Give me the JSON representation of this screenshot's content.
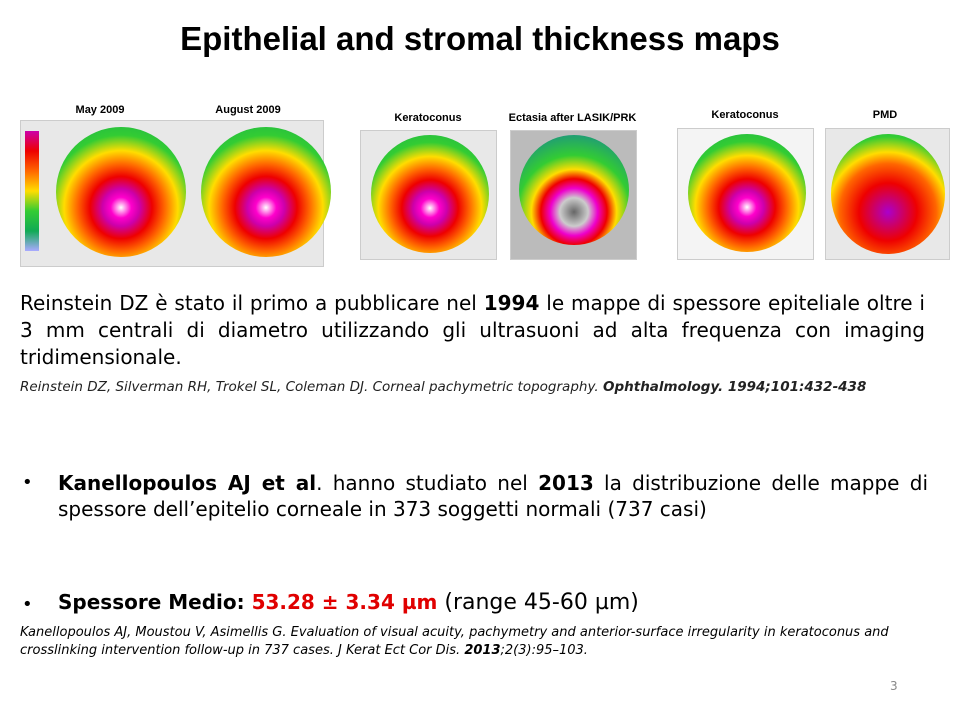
{
  "title": "Epithelial and stromal thickness maps",
  "figure_labels": [
    "May 2009",
    "August 2009",
    "Keratoconus",
    "Ectasia after LASIK/PRK",
    "Keratoconus",
    "PMD"
  ],
  "paragraph": {
    "a": "Reinstein DZ è stato il primo a pubblicare nel ",
    "b": "1994",
    "c": " le mappe di spessore epiteliale oltre i 3 mm centrali di diametro utilizzando gli ultrasuoni ad alta frequenza con imaging tridimensionale."
  },
  "citation1": {
    "a": "Reinstein DZ, Silverman RH, Trokel SL, Coleman DJ. Corneal pachymetric topography. ",
    "b": "Ophthalmology. 1994;101:432-438"
  },
  "bullet1": {
    "a": "Kanellopoulos AJ et al",
    "b": ". hanno studiato nel ",
    "c": "2013",
    "d": " la distribuzione delle mappe di spessore dell’epitelio corneale in 373 soggetti normali (737 casi)"
  },
  "bullet2": {
    "a": "Spessore Medio:",
    "b": " 53.28 ± 3.34 µm",
    "c": " (range 45-60 µm)"
  },
  "citation2": {
    "a": "Kanellopoulos AJ, Moustou V, Asimellis G. Evaluation of visual acuity, pachymetry and anterior-surface irregularity in keratoconus and crosslinking intervention follow-up in 737 cases. J Kerat Ect Cor Dis. ",
    "b": "2013",
    "c": ";2(3):95–103."
  },
  "page_number": "3"
}
